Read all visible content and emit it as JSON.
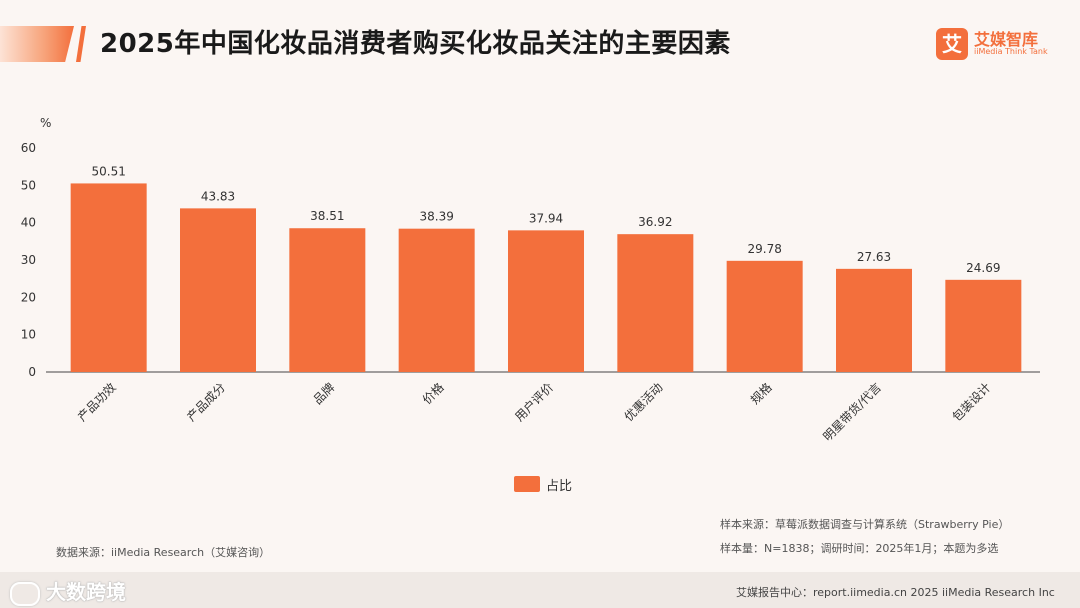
{
  "header": {
    "title": "2025年中国化妆品消费者购买化妆品关注的主要因素",
    "logo_mark": "艾",
    "logo_cn": "艾媒智库",
    "logo_en": "iiMedia Think Tank"
  },
  "colors": {
    "bar": "#f36f3c",
    "axis": "#444444",
    "text": "#333333"
  },
  "chart_data": {
    "type": "bar",
    "title": "2025年中国化妆品消费者购买化妆品关注的主要因素",
    "ylabel": "%",
    "xlabel": "",
    "ylim": [
      0,
      60
    ],
    "yticks": [
      0,
      10,
      20,
      30,
      40,
      50,
      60
    ],
    "categories": [
      "产品功效",
      "产品成分",
      "品牌",
      "价格",
      "用户评价",
      "优惠活动",
      "规格",
      "明星带货/代言",
      "包装设计"
    ],
    "series": [
      {
        "name": "占比",
        "values": [
          50.51,
          43.83,
          38.51,
          38.39,
          37.94,
          36.92,
          29.78,
          27.63,
          24.69
        ],
        "labels": [
          "50.51",
          "43.83",
          "38.51",
          "38.39",
          "37.94",
          "36.92",
          "29.78",
          "27.63",
          "24.69"
        ]
      }
    ],
    "legend": "bottom-center",
    "grid": false
  },
  "legend": {
    "label": "占比"
  },
  "footer": {
    "source_left": "数据来源：iiMedia Research（艾媒咨询）",
    "sample_source": "样本来源：草莓派数据调查与计算系统（Strawberry Pie）",
    "sample_info": "样本量：N=1838；调研时间：2025年1月；本题为多选",
    "report_center": "艾媒报告中心：report.iimedia.cn 2025 iiMedia Research Inc",
    "watermark": "大数跨境"
  }
}
